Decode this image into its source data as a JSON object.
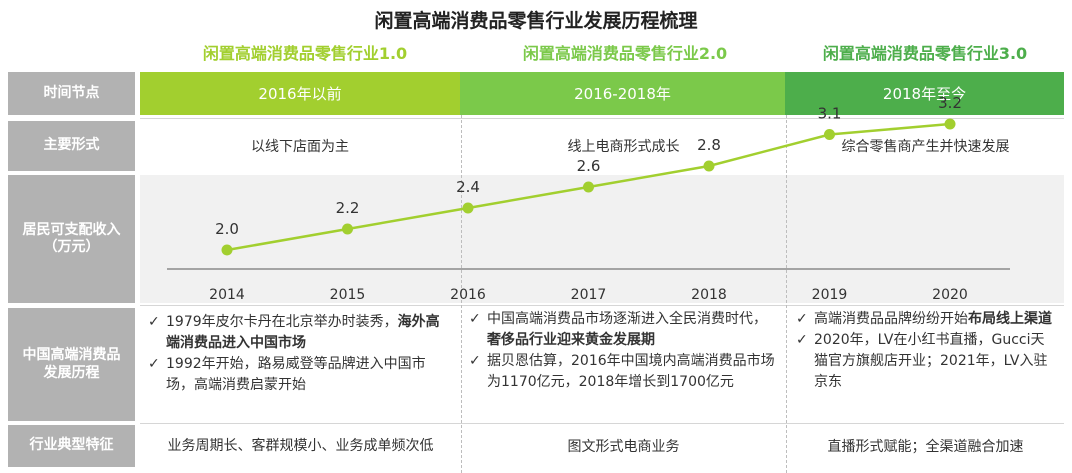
{
  "title": "闲置高端消费品零售行业发展历程梳理",
  "colors": {
    "stage1": "#a2cf2f",
    "stage2": "#7bc94a",
    "stage3": "#4dae4b",
    "label_bg": "#b2b2b2",
    "line": "#a2cf2f"
  },
  "stages": [
    {
      "name": "闲置高端消费品零售行业1.0",
      "time": "2016年以前",
      "form": "以线下店面为主",
      "feature": "业务周期长、客群规模小、业务成单频次低"
    },
    {
      "name": "闲置高端消费品零售行业2.0",
      "time": "2016-2018年",
      "form": "线上电商形式成长",
      "feature": "图文形式电商业务"
    },
    {
      "name": "闲置高端消费品零售行业3.0",
      "time": "2018年至今",
      "form": "综合零售商产生并快速发展",
      "feature": "直播形式赋能；全渠道融合加速"
    }
  ],
  "row_labels": {
    "time": "时间节点",
    "form": "主要形式",
    "income": "居民可支配收入（万元）",
    "history": "中国高端消费品发展历程",
    "feature": "行业典型特征"
  },
  "history": [
    [
      {
        "plain": "1979年皮尔卡丹在北京举办时装秀，",
        "bold": "海外高端消费品进入中国市场"
      },
      {
        "plain": "1992年开始，路易威登等品牌进入中国市场，高端消费启蒙开始",
        "bold": ""
      }
    ],
    [
      {
        "plain": "中国高端消费品市场逐渐进入全民消费时代，",
        "bold": "奢侈品行业迎来黄金发展期"
      },
      {
        "plain": "据贝恩估算，2016年中国境内高端消费品市场为1170亿元，2018年增长到1700亿元",
        "bold": ""
      }
    ],
    [
      {
        "plain": "高端消费品品牌纷纷开始",
        "bold": "布局线上渠道"
      },
      {
        "plain": "2020年，LV在小红书直播，Gucci天猫官方旗舰店开业；2021年，LV入驻京东",
        "bold": ""
      }
    ]
  ],
  "chart_data": {
    "type": "line",
    "x": [
      "2014",
      "2015",
      "2016",
      "2017",
      "2018",
      "2019",
      "2020"
    ],
    "series": [
      {
        "values": [
          2.0,
          2.2,
          2.4,
          2.6,
          2.8,
          3.1,
          3.2
        ]
      }
    ],
    "data_labels": [
      "2.0",
      "2.2",
      "2.4",
      "2.6",
      "2.8",
      "3.1",
      "3.2"
    ],
    "ylabel": "居民可支配收入（万元）",
    "grid": false
  }
}
